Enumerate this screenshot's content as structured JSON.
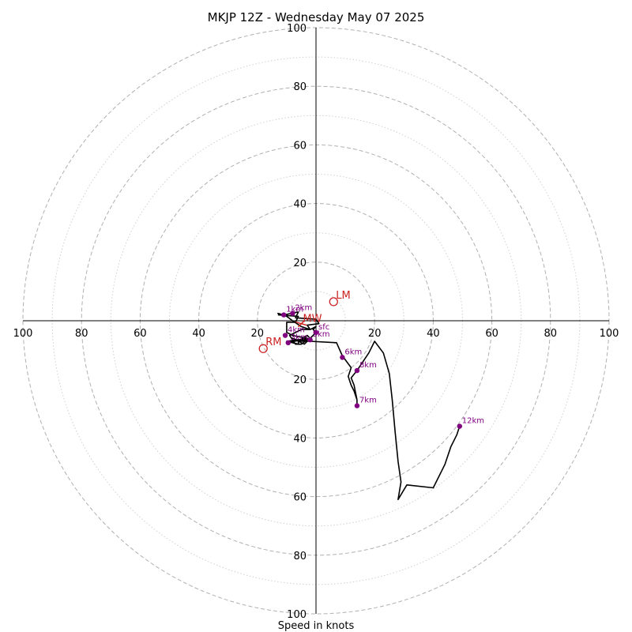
{
  "chart_data": {
    "type": "hodograph",
    "title": "MKJP 12Z - Wednesday May 07 2025",
    "xlabel": "Speed in knots",
    "max_speed": 100,
    "ring_step": 10,
    "tick_labels": {
      "left": [
        "100",
        "80",
        "60",
        "40",
        "20"
      ],
      "right": [
        "20",
        "40",
        "60",
        "80",
        "100"
      ],
      "top": [
        "20",
        "40",
        "60",
        "80",
        "100"
      ],
      "bottom": [
        "20",
        "40",
        "60",
        "80",
        "100"
      ]
    },
    "trace": [
      [
        -13,
        2
      ],
      [
        -6,
        1.5
      ],
      [
        -7,
        -0.5
      ],
      [
        -10,
        -0.5
      ],
      [
        -10,
        -4
      ],
      [
        -8,
        -5
      ],
      [
        -3,
        -6
      ],
      [
        -10,
        -7
      ],
      [
        -6,
        -8
      ],
      [
        -6,
        -7
      ],
      [
        -3,
        -5
      ],
      [
        -2,
        -6
      ],
      [
        -10,
        -7.5
      ],
      [
        -8,
        -7
      ],
      [
        -3,
        -6.5
      ],
      [
        -5,
        -8
      ],
      [
        -7,
        -8
      ],
      [
        -9,
        -5
      ],
      [
        -5,
        -3
      ],
      [
        -2,
        -3
      ],
      [
        -3,
        -1.5
      ],
      [
        1,
        -1
      ],
      [
        0,
        0.5
      ],
      [
        -7,
        1
      ],
      [
        -6,
        3
      ],
      [
        -11,
        2
      ],
      [
        -13,
        2.5
      ],
      [
        -10,
        1.5
      ],
      [
        -8,
        0
      ],
      [
        -5,
        -2
      ],
      [
        -2,
        -3
      ],
      [
        0,
        -2
      ],
      [
        -1,
        -3
      ],
      [
        0,
        -4
      ],
      [
        -1,
        -5
      ],
      [
        -2,
        -6
      ],
      [
        -4,
        -7
      ],
      [
        -3,
        -7
      ],
      [
        -4,
        -8
      ],
      [
        -8,
        -6
      ],
      [
        -5,
        -7
      ],
      [
        -2,
        -7
      ],
      [
        7,
        -7.5
      ],
      [
        9,
        -12
      ],
      [
        12,
        -16
      ],
      [
        11,
        -19
      ],
      [
        12,
        -22
      ],
      [
        13,
        -24
      ],
      [
        14,
        -27
      ],
      [
        14,
        -29
      ],
      [
        14,
        -27
      ],
      [
        13,
        -22
      ],
      [
        12,
        -19.5
      ],
      [
        14,
        -17
      ],
      [
        18,
        -11
      ],
      [
        20,
        -7
      ],
      [
        23,
        -11
      ],
      [
        25,
        -18
      ],
      [
        26,
        -27
      ],
      [
        27,
        -38
      ],
      [
        28,
        -48
      ],
      [
        29,
        -55
      ],
      [
        28,
        -61
      ],
      [
        31,
        -56
      ],
      [
        40,
        -57
      ],
      [
        44,
        -49
      ],
      [
        46,
        -43
      ],
      [
        48,
        -39
      ],
      [
        49,
        -36
      ]
    ],
    "height_markers": [
      {
        "label": "sfc",
        "u": 0,
        "v": -4
      },
      {
        "label": "1km",
        "u": -11,
        "v": 2
      },
      {
        "label": "2km",
        "u": -8,
        "v": 2.5
      },
      {
        "label": "3km",
        "u": -9.5,
        "v": -7.5
      },
      {
        "label": "4km",
        "u": -10.5,
        "v": -5
      },
      {
        "label": "5km",
        "u": -2,
        "v": -6.5
      },
      {
        "label": "6km",
        "u": 9,
        "v": -12.5
      },
      {
        "label": "8km",
        "u": 14,
        "v": -17
      },
      {
        "label": "7km",
        "u": 14,
        "v": -29
      },
      {
        "label": "12km",
        "u": 49,
        "v": -36
      }
    ],
    "storm_motion": [
      {
        "label": "LM",
        "u": 6,
        "v": 6.5
      },
      {
        "label": "RM",
        "u": -18,
        "v": -9.5
      },
      {
        "label": "MW",
        "u": -5,
        "v": -1
      }
    ],
    "colors": {
      "trace": "#000000",
      "height_marker": "#800080",
      "storm_motion": "#cc2222",
      "grid": "#b0b0b0",
      "axis": "#000000"
    }
  }
}
